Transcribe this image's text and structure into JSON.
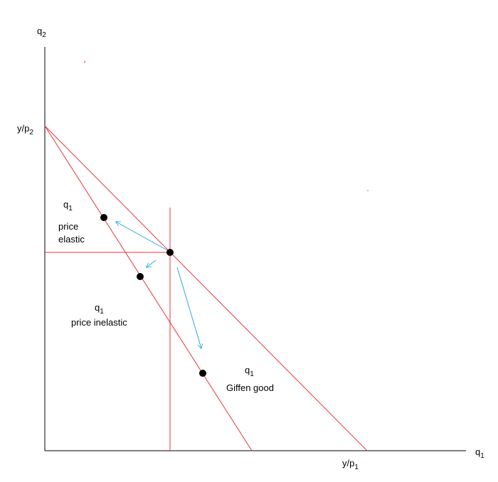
{
  "axes": {
    "y_label": "q",
    "y_sub": "2",
    "x_label": "q",
    "x_sub": "1"
  },
  "intercepts": {
    "y": "y/p",
    "y_sub": "2",
    "x": "y/p",
    "x_sub": "1"
  },
  "regions": {
    "elastic": {
      "var": "q",
      "var_sub": "1",
      "line1": "price",
      "line2": "elastic"
    },
    "inelastic": {
      "var": "q",
      "var_sub": "1",
      "line1": "price inelastic"
    },
    "giffen": {
      "var": "q",
      "var_sub": "1",
      "line1": "Giffen good"
    }
  },
  "colors": {
    "axis": "#000000",
    "budget_line": "#e8343a",
    "arrow": "#29a8e0",
    "point": "#000000"
  }
}
